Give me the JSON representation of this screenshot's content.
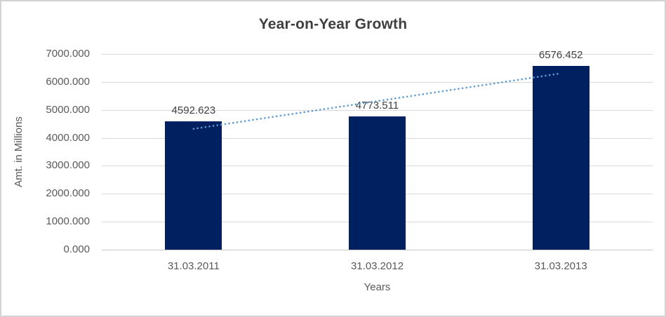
{
  "chart_data": {
    "type": "bar",
    "title": "Year-on-Year Growth",
    "xlabel": "Years",
    "ylabel": "Amt. in Millions",
    "categories": [
      "31.03.2011",
      "31.03.2012",
      "31.03.2013"
    ],
    "values": [
      4592.623,
      4773.511,
      6576.452
    ],
    "value_labels": [
      "4592.623",
      "4773.511",
      "6576.452"
    ],
    "ylim": [
      0,
      7000
    ],
    "ytick_step": 1000,
    "ytick_labels": [
      "0.000",
      "1000.000",
      "2000.000",
      "3000.000",
      "4000.000",
      "5000.000",
      "6000.000",
      "7000.000"
    ],
    "grid": true,
    "legend": "none",
    "bar_color": "#002060",
    "trendline": {
      "type": "linear",
      "style": "dotted",
      "color": "#5b9bd5",
      "start_value": 4322.3,
      "end_value": 6306.1
    },
    "colors": {
      "title_text": "#3f3f3f",
      "axis_text": "#595959",
      "data_label_text": "#404040",
      "gridline": "#d9d9d9",
      "axis_line": "#c9c9c9",
      "canvas_border": "#d3d3d3",
      "background": "#ffffff"
    }
  }
}
